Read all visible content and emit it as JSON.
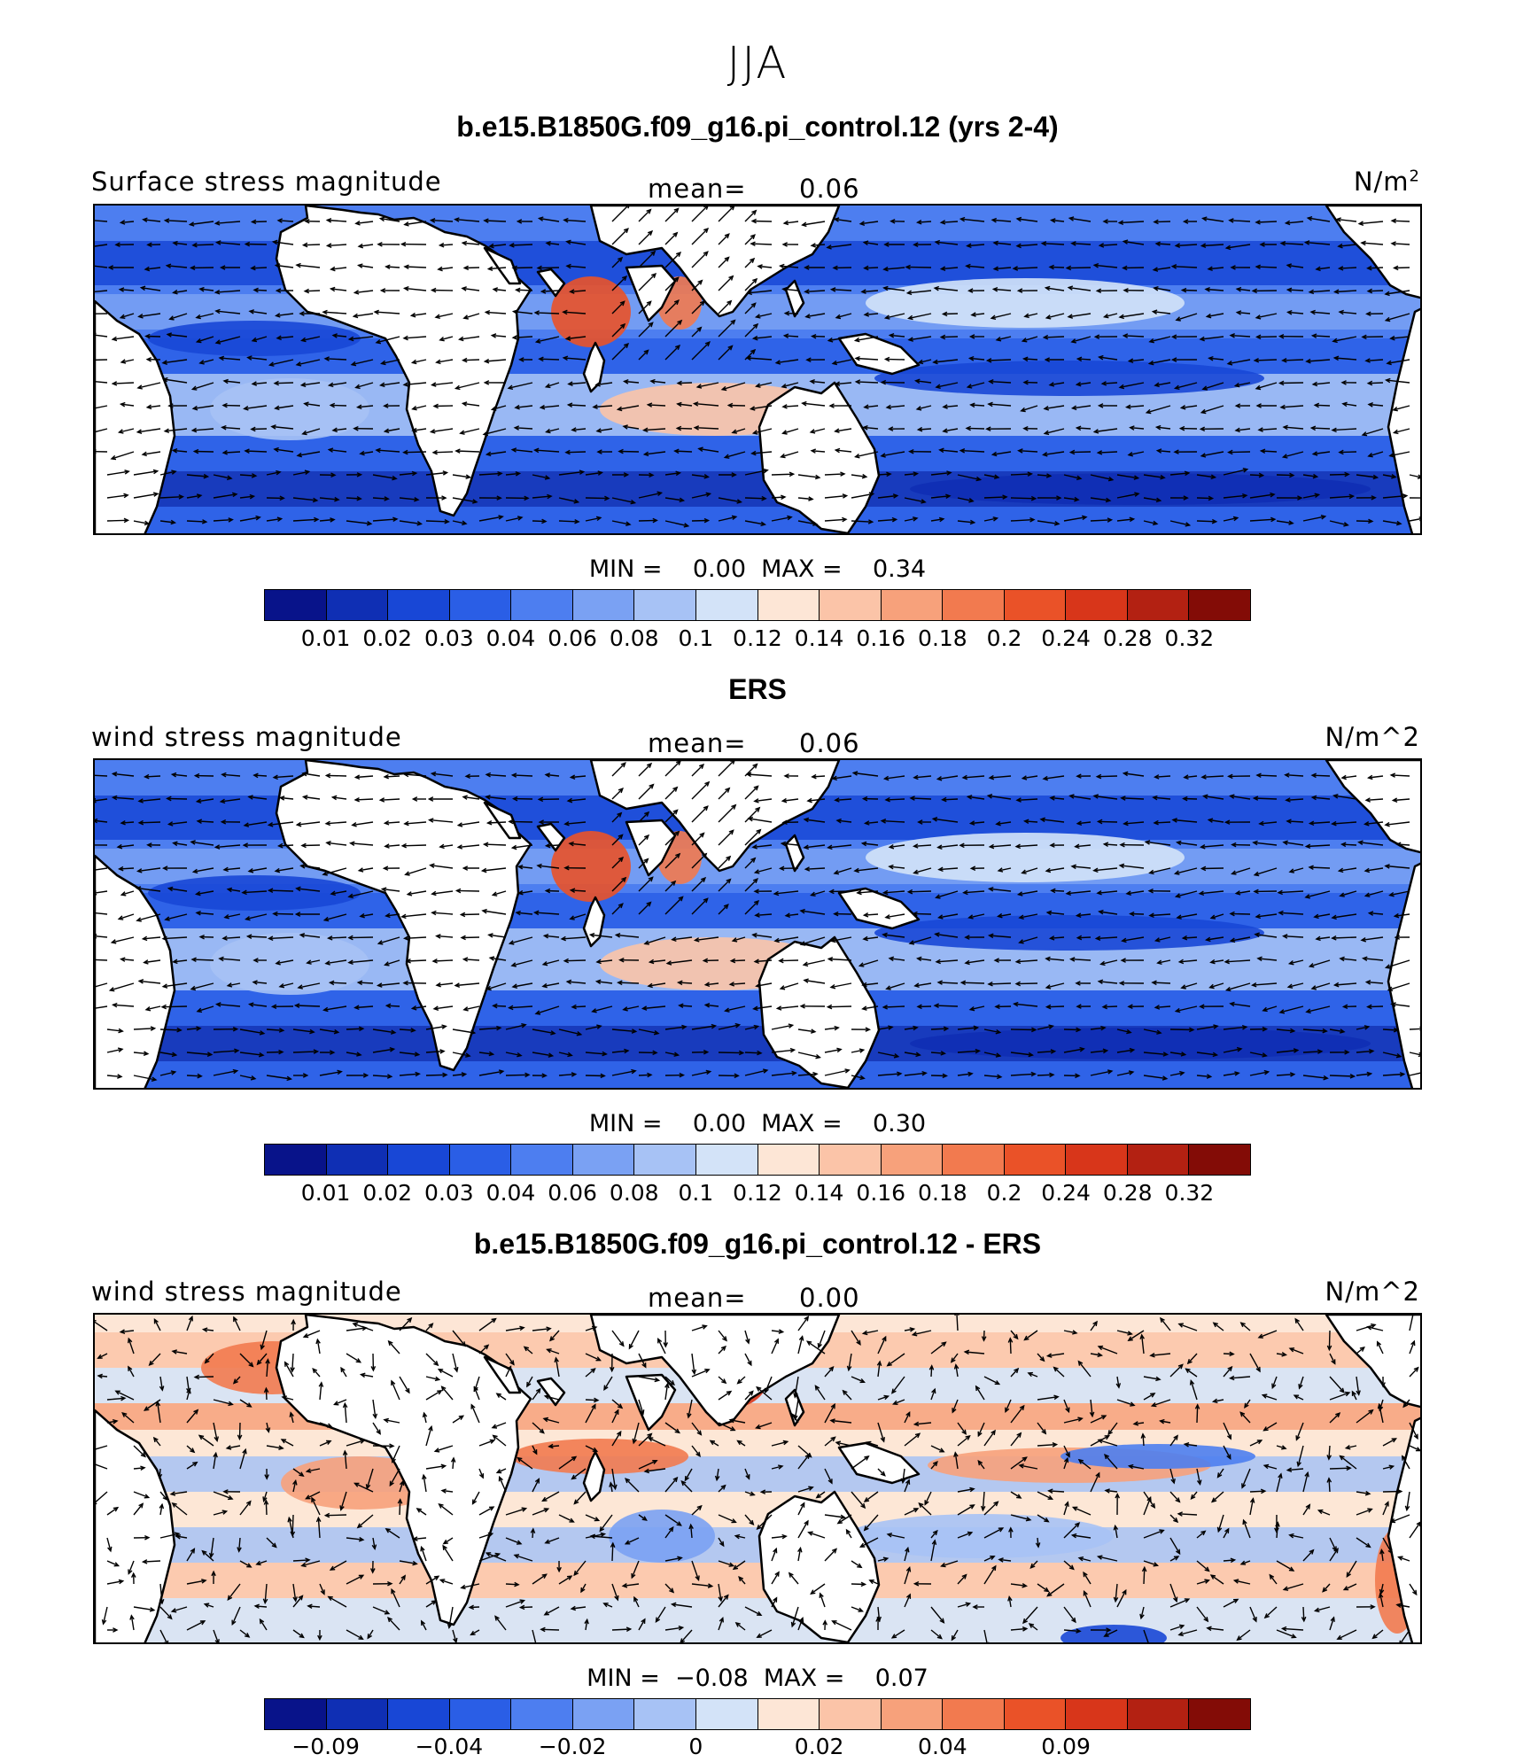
{
  "figure_title": "JJA",
  "colors": {
    "scale": [
      "#08138a",
      "#0f2fb4",
      "#1847d6",
      "#2a5ee6",
      "#4d7ef0",
      "#7aa1f3",
      "#a7c2f5",
      "#d3e3f8",
      "#fde6d6",
      "#fbc4a8",
      "#f7a17b",
      "#f27a4f",
      "#ea5228",
      "#d8361a",
      "#b32112",
      "#830c06"
    ],
    "land": "#ffffff",
    "coast": "#000000",
    "vector": "#000000"
  },
  "panels": [
    {
      "title": "b.e15.B1850G.f09_g16.pi_control.12 (yrs 2-4)",
      "left_label": "Surface stress magnitude",
      "mean_label": "mean=",
      "mean_value": "0.06",
      "units_base": "N/m",
      "units_sup": "2",
      "units": "",
      "minmax": "MIN =    0.00  MAX =    0.34",
      "ticks": [
        "0.01",
        "0.02",
        "0.03",
        "0.04",
        "0.06",
        "0.08",
        "0.1",
        "0.12",
        "0.14",
        "0.16",
        "0.18",
        "0.2",
        "0.24",
        "0.28",
        "0.32"
      ],
      "kind": "magnitude"
    },
    {
      "title": "ERS",
      "left_label": "wind stress magnitude",
      "mean_label": "mean=",
      "mean_value": "0.06",
      "units_base": "",
      "units_sup": "",
      "units": "N/m^2",
      "minmax": "MIN =    0.00  MAX =    0.30",
      "ticks": [
        "0.01",
        "0.02",
        "0.03",
        "0.04",
        "0.06",
        "0.08",
        "0.1",
        "0.12",
        "0.14",
        "0.16",
        "0.18",
        "0.2",
        "0.24",
        "0.28",
        "0.32"
      ],
      "kind": "magnitude"
    },
    {
      "title": "b.e15.B1850G.f09_g16.pi_control.12 - ERS",
      "left_label": "wind stress magnitude",
      "mean_label": "mean=",
      "mean_value": "0.00",
      "units_base": "",
      "units_sup": "",
      "units": "N/m^2",
      "minmax": "MIN =  −0.08  MAX =    0.07",
      "ticks": [
        "−0.09",
        "",
        "−0.04",
        "",
        "−0.02",
        "",
        "0",
        "",
        "0.02",
        "",
        "0.04",
        "",
        "0.09",
        "",
        ""
      ],
      "kind": "difference"
    }
  ]
}
